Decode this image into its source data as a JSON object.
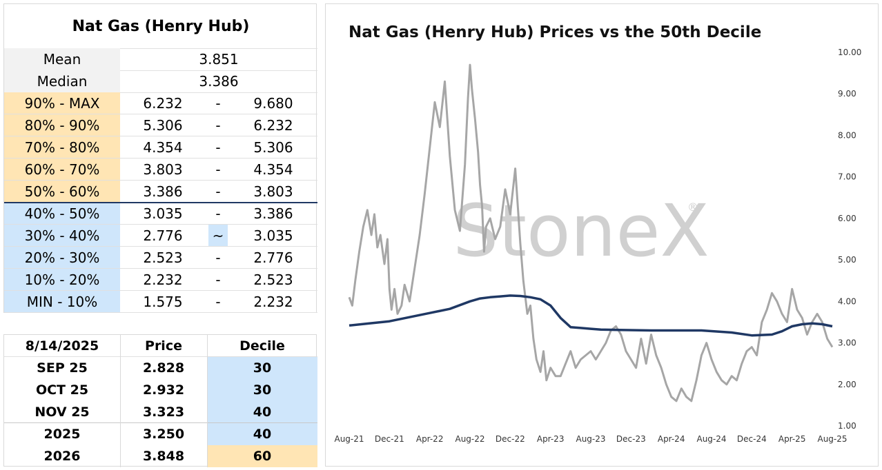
{
  "stats_table": {
    "title": "Nat Gas (Henry Hub)",
    "mean_label": "Mean",
    "mean_value": "3.851",
    "median_label": "Median",
    "median_value": "3.386",
    "deciles": [
      {
        "label": "90% - MAX",
        "low": "6.232",
        "sep": "-",
        "high": "9.680",
        "tone": "orange"
      },
      {
        "label": "80% - 90%",
        "low": "5.306",
        "sep": "-",
        "high": "6.232",
        "tone": "orange"
      },
      {
        "label": "70% - 80%",
        "low": "4.354",
        "sep": "-",
        "high": "5.306",
        "tone": "orange"
      },
      {
        "label": "60% - 70%",
        "low": "3.803",
        "sep": "-",
        "high": "4.354",
        "tone": "orange"
      },
      {
        "label": "50% - 60%",
        "low": "3.386",
        "sep": "-",
        "high": "3.803",
        "tone": "orange"
      },
      {
        "label": "40% - 50%",
        "low": "3.035",
        "sep": "-",
        "high": "3.386",
        "tone": "blue"
      },
      {
        "label": "30% - 40%",
        "low": "2.776",
        "sep": "~",
        "high": "3.035",
        "tone": "blue",
        "sep_highlight": true
      },
      {
        "label": "20% - 30%",
        "low": "2.523",
        "sep": "-",
        "high": "2.776",
        "tone": "blue"
      },
      {
        "label": "10% - 20%",
        "low": "2.232",
        "sep": "-",
        "high": "2.523",
        "tone": "blue"
      },
      {
        "label": "MIN - 10%",
        "low": "1.575",
        "sep": "-",
        "high": "2.232",
        "tone": "blue"
      }
    ]
  },
  "price_table": {
    "headers": [
      "8/14/2025",
      "Price",
      "Decile"
    ],
    "rows": [
      {
        "contract": "SEP 25",
        "price": "2.828",
        "decile": "30",
        "tone": "blue"
      },
      {
        "contract": "OCT 25",
        "price": "2.932",
        "decile": "30",
        "tone": "blue"
      },
      {
        "contract": "NOV 25",
        "price": "3.323",
        "decile": "40",
        "tone": "blue"
      },
      {
        "contract": "2025",
        "price": "3.250",
        "decile": "40",
        "tone": "blue"
      },
      {
        "contract": "2026",
        "price": "3.848",
        "decile": "60",
        "tone": "orange"
      }
    ]
  },
  "colors": {
    "orange": "#ffe5b4",
    "blue": "#cfe6fb",
    "price_line": "#a6a6a6",
    "decile_line": "#1f3864",
    "watermark": "#d0d0d0"
  },
  "watermark": "StoneX",
  "chart_data": {
    "type": "line",
    "title": "Nat Gas (Henry Hub) Prices vs the 50th Decile",
    "xlabel": "",
    "ylabel": "",
    "ylim": [
      1.0,
      10.0
    ],
    "y_ticks": [
      "1.00",
      "2.00",
      "3.00",
      "4.00",
      "5.00",
      "6.00",
      "7.00",
      "8.00",
      "9.00",
      "10.00"
    ],
    "x_ticks": [
      "Aug-21",
      "Dec-21",
      "Apr-22",
      "Aug-22",
      "Dec-22",
      "Apr-23",
      "Aug-23",
      "Dec-23",
      "Apr-24",
      "Aug-24",
      "Dec-24",
      "Apr-25",
      "Aug-25"
    ],
    "grid": false,
    "legend": "none",
    "series": [
      {
        "style": "price",
        "x": [
          0,
          0.3,
          0.6,
          1.0,
          1.4,
          1.8,
          2.2,
          2.5,
          2.8,
          3.1,
          3.5,
          3.8,
          4.0,
          4.2,
          4.5,
          4.8,
          5.2,
          5.5,
          6.0,
          6.5,
          7.0,
          7.5,
          8.0,
          8.5,
          9.0,
          9.5,
          10.0,
          10.5,
          11.0,
          11.5,
          11.8,
          12.0,
          12.2,
          12.5,
          12.8,
          13.0,
          13.2,
          13.4,
          13.6,
          14.0,
          14.5,
          15.0,
          15.5,
          16.0,
          16.5,
          17.0,
          17.3,
          17.7,
          18.0,
          18.3,
          18.6,
          19.0,
          19.3,
          19.6,
          20.0,
          20.5,
          21.0,
          21.5,
          22.0,
          22.5,
          23.0,
          23.5,
          24.0,
          24.5,
          25.0,
          25.5,
          26.0,
          26.5,
          27.0,
          27.5,
          28.0,
          28.5,
          29.0,
          29.5,
          30.0,
          30.5,
          31.0,
          31.5,
          32.0,
          32.5,
          33.0,
          33.5,
          34.0,
          34.5,
          35.0,
          35.5,
          36.0,
          36.5,
          37.0,
          37.5,
          38.0,
          38.5,
          39.0,
          39.5,
          40.0,
          40.5,
          41.0,
          41.5,
          42.0,
          42.5,
          43.0,
          43.5,
          44.0,
          44.5,
          45.0,
          45.5,
          46.0,
          46.5,
          47.0,
          47.5,
          48.0
        ],
        "y": [
          4.1,
          3.9,
          4.5,
          5.2,
          5.8,
          6.2,
          5.6,
          6.1,
          5.3,
          5.6,
          4.9,
          5.5,
          4.3,
          3.8,
          4.3,
          3.7,
          3.9,
          4.4,
          4.0,
          4.8,
          5.6,
          6.6,
          7.7,
          8.8,
          8.2,
          9.3,
          7.5,
          6.2,
          5.7,
          7.3,
          8.9,
          9.7,
          9.1,
          8.4,
          7.6,
          6.8,
          6.3,
          5.2,
          5.8,
          6.0,
          5.5,
          5.8,
          6.7,
          6.1,
          7.2,
          5.4,
          4.5,
          3.7,
          3.9,
          3.1,
          2.6,
          2.3,
          2.8,
          2.1,
          2.4,
          2.2,
          2.2,
          2.5,
          2.8,
          2.4,
          2.6,
          2.7,
          2.8,
          2.6,
          2.8,
          3.0,
          3.3,
          3.4,
          3.2,
          2.8,
          2.6,
          2.4,
          3.1,
          2.5,
          3.2,
          2.7,
          2.4,
          2.0,
          1.7,
          1.6,
          1.9,
          1.7,
          1.6,
          2.1,
          2.7,
          3.0,
          2.6,
          2.3,
          2.1,
          2.0,
          2.2,
          2.1,
          2.5,
          2.8,
          2.9,
          2.7,
          3.5,
          3.8,
          4.2,
          4.0,
          3.7,
          3.5,
          4.3,
          3.8,
          3.6,
          3.2,
          3.5,
          3.7,
          3.5,
          3.1,
          2.9
        ]
      },
      {
        "style": "decile",
        "x": [
          0,
          2,
          4,
          6,
          8,
          10,
          12,
          13,
          14,
          15,
          16,
          17,
          18,
          19,
          20,
          21,
          22,
          23,
          24,
          25,
          30,
          35,
          38,
          40,
          42,
          43,
          44,
          45,
          46,
          47,
          48
        ],
        "y": [
          3.42,
          3.47,
          3.52,
          3.62,
          3.72,
          3.82,
          4.0,
          4.07,
          4.1,
          4.12,
          4.14,
          4.13,
          4.1,
          4.05,
          3.9,
          3.6,
          3.38,
          3.36,
          3.34,
          3.32,
          3.3,
          3.3,
          3.25,
          3.18,
          3.2,
          3.28,
          3.4,
          3.45,
          3.47,
          3.45,
          3.4
        ]
      }
    ]
  }
}
